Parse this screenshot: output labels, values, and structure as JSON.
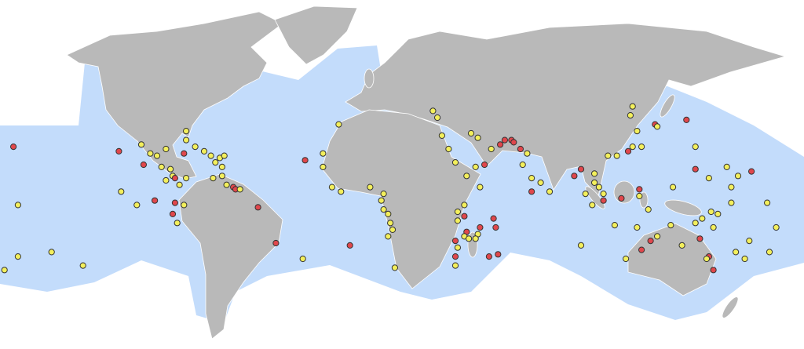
{
  "map": {
    "projection": "equirectangular",
    "colors": {
      "ocean_band": "#c3dcfb",
      "land": "#b9b9b9",
      "borders": "#ffffff",
      "background": "#ffffff",
      "yellow": "#f3ef5c",
      "red": "#e0474c"
    },
    "points": [
      [
        -159,
        22,
        "r"
      ],
      [
        -157,
        -4,
        "y"
      ],
      [
        -157,
        -27,
        "y"
      ],
      [
        -163,
        -33,
        "y"
      ],
      [
        -142,
        -25,
        "y"
      ],
      [
        -128,
        -31,
        "y"
      ],
      [
        -112,
        20,
        "r"
      ],
      [
        -102,
        23,
        "y"
      ],
      [
        -98,
        19,
        "y"
      ],
      [
        -101,
        14,
        "r"
      ],
      [
        -95,
        18,
        "y"
      ],
      [
        -91,
        21,
        "y"
      ],
      [
        -93,
        13,
        "y"
      ],
      [
        -89,
        12,
        "y"
      ],
      [
        -91,
        7,
        "y"
      ],
      [
        -88,
        9,
        "y"
      ],
      [
        -87,
        8,
        "r"
      ],
      [
        -85,
        5,
        "y"
      ],
      [
        -82,
        29,
        "y"
      ],
      [
        -82,
        25,
        "y"
      ],
      [
        -78,
        22,
        "y"
      ],
      [
        -74,
        20,
        "y"
      ],
      [
        -71,
        18,
        "y"
      ],
      [
        -67,
        17,
        "y"
      ],
      [
        -69,
        15,
        "y"
      ],
      [
        -66,
        13,
        "y"
      ],
      [
        -65,
        18,
        "y"
      ],
      [
        -83,
        19,
        "r"
      ],
      [
        -82,
        8,
        "y"
      ],
      [
        -70,
        8,
        "y"
      ],
      [
        -66,
        9,
        "y"
      ],
      [
        -64,
        5,
        "y"
      ],
      [
        -61,
        4,
        "r"
      ],
      [
        -60,
        3,
        "r"
      ],
      [
        -58,
        3,
        "y"
      ],
      [
        -111,
        2,
        "y"
      ],
      [
        -104,
        -4,
        "y"
      ],
      [
        -96,
        -2,
        "r"
      ],
      [
        -87,
        -3,
        "r"
      ],
      [
        -88,
        -8,
        "r"
      ],
      [
        -86,
        -12,
        "y"
      ],
      [
        -83,
        -4,
        "y"
      ],
      [
        -50,
        -5,
        "r"
      ],
      [
        -42,
        -21,
        "r"
      ],
      [
        -30,
        -28,
        "y"
      ],
      [
        -14,
        32,
        "y"
      ],
      [
        -29,
        16,
        "r"
      ],
      [
        -21,
        19,
        "y"
      ],
      [
        -21,
        13,
        "y"
      ],
      [
        -17,
        4,
        "y"
      ],
      [
        -13,
        2,
        "y"
      ],
      [
        0,
        4,
        "y"
      ],
      [
        6,
        1,
        "y"
      ],
      [
        5,
        -2,
        "y"
      ],
      [
        6,
        -6,
        "y"
      ],
      [
        8,
        -8,
        "y"
      ],
      [
        9,
        -12,
        "y"
      ],
      [
        10,
        -15,
        "y"
      ],
      [
        8,
        -18,
        "y"
      ],
      [
        -9,
        -22,
        "r"
      ],
      [
        11,
        -32,
        "y"
      ],
      [
        28,
        38,
        "y"
      ],
      [
        30,
        35,
        "y"
      ],
      [
        32,
        27,
        "y"
      ],
      [
        35,
        21,
        "y"
      ],
      [
        38,
        15,
        "y"
      ],
      [
        43,
        9,
        "y"
      ],
      [
        49,
        4,
        "y"
      ],
      [
        47,
        13,
        "y"
      ],
      [
        51,
        14,
        "r"
      ],
      [
        45,
        28,
        "y"
      ],
      [
        48,
        26,
        "y"
      ],
      [
        54,
        21,
        "y"
      ],
      [
        58,
        23,
        "r"
      ],
      [
        60,
        25,
        "r"
      ],
      [
        63,
        25,
        "r"
      ],
      [
        64,
        24,
        "r"
      ],
      [
        67,
        21,
        "r"
      ],
      [
        70,
        19,
        "y"
      ],
      [
        68,
        14,
        "y"
      ],
      [
        72,
        8,
        "y"
      ],
      [
        76,
        6,
        "y"
      ],
      [
        80,
        2,
        "y"
      ],
      [
        72,
        2,
        "r"
      ],
      [
        42,
        -4,
        "y"
      ],
      [
        39,
        -7,
        "y"
      ],
      [
        39,
        -11,
        "y"
      ],
      [
        42,
        -9,
        "r"
      ],
      [
        55,
        -10,
        "r"
      ],
      [
        49,
        -14,
        "r"
      ],
      [
        48,
        -17,
        "y"
      ],
      [
        43,
        -16,
        "r"
      ],
      [
        42,
        -18,
        "y"
      ],
      [
        44,
        -19,
        "y"
      ],
      [
        47,
        -19,
        "y"
      ],
      [
        38,
        -20,
        "r"
      ],
      [
        56,
        -14,
        "r"
      ],
      [
        39,
        -23,
        "y"
      ],
      [
        38,
        -27,
        "r"
      ],
      [
        53,
        -27,
        "r"
      ],
      [
        57,
        -26,
        "r"
      ],
      [
        38,
        -31,
        "y"
      ],
      [
        91,
        9,
        "r"
      ],
      [
        94,
        12,
        "r"
      ],
      [
        100,
        10,
        "y"
      ],
      [
        100,
        6,
        "y"
      ],
      [
        102,
        4,
        "y"
      ],
      [
        96,
        1,
        "y"
      ],
      [
        99,
        -4,
        "y"
      ],
      [
        104,
        1,
        "y"
      ],
      [
        104,
        -2,
        "r"
      ],
      [
        112,
        -1,
        "r"
      ],
      [
        120,
        3,
        "r"
      ],
      [
        120,
        0,
        "y"
      ],
      [
        124,
        -6,
        "y"
      ],
      [
        106,
        18,
        "y"
      ],
      [
        110,
        18,
        "y"
      ],
      [
        117,
        22,
        "y"
      ],
      [
        115,
        20,
        "r"
      ],
      [
        121,
        22,
        "y"
      ],
      [
        119,
        29,
        "y"
      ],
      [
        116,
        36,
        "y"
      ],
      [
        117,
        40,
        "y"
      ],
      [
        127,
        32,
        "r"
      ],
      [
        128,
        31,
        "y"
      ],
      [
        141,
        34,
        "r"
      ],
      [
        145,
        22,
        "y"
      ],
      [
        145,
        12,
        "r"
      ],
      [
        151,
        8,
        "y"
      ],
      [
        159,
        13,
        "y"
      ],
      [
        170,
        11,
        "r"
      ],
      [
        164,
        9,
        "y"
      ],
      [
        161,
        4,
        "y"
      ],
      [
        135,
        4,
        "y"
      ],
      [
        161,
        -3,
        "y"
      ],
      [
        177,
        -3,
        "y"
      ],
      [
        152,
        -7,
        "y"
      ],
      [
        148,
        -10,
        "y"
      ],
      [
        155,
        -8,
        "y"
      ],
      [
        153,
        -14,
        "y"
      ],
      [
        145,
        -12,
        "y"
      ],
      [
        147,
        -19,
        "r"
      ],
      [
        139,
        -22,
        "y"
      ],
      [
        125,
        -20,
        "r"
      ],
      [
        121,
        -24,
        "r"
      ],
      [
        114,
        -28,
        "y"
      ],
      [
        94,
        -22,
        "y"
      ],
      [
        109,
        -13,
        "y"
      ],
      [
        119,
        -14,
        "y"
      ],
      [
        128,
        -18,
        "y"
      ],
      [
        169,
        -20,
        "y"
      ],
      [
        163,
        -25,
        "y"
      ],
      [
        167,
        -28,
        "y"
      ],
      [
        151,
        -27,
        "r"
      ],
      [
        153,
        -33,
        "r"
      ],
      [
        178,
        -25,
        "y"
      ],
      [
        181,
        -14,
        "y"
      ],
      [
        150,
        -28,
        "y"
      ],
      [
        134,
        -13,
        "y"
      ]
    ]
  }
}
